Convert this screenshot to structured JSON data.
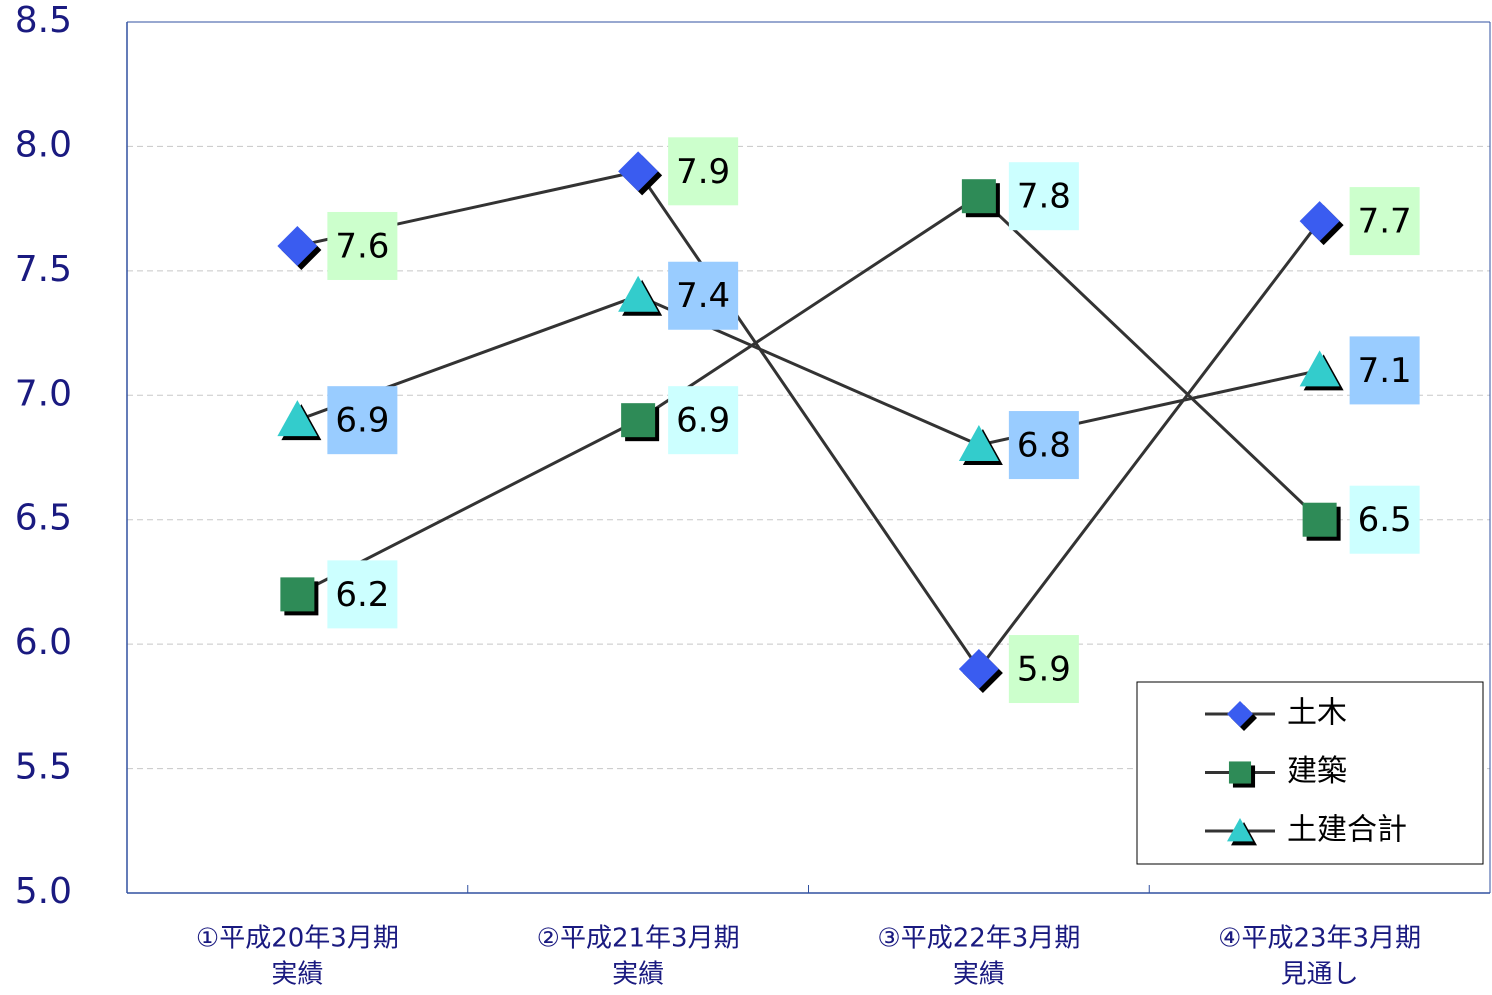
{
  "chart_data": {
    "type": "line",
    "categories": [
      [
        "①平成20年3月期",
        "実績"
      ],
      [
        "②平成21年3月期",
        "実績"
      ],
      [
        "③平成22年3月期",
        "実績"
      ],
      [
        "④平成23年3月期",
        "見通し"
      ]
    ],
    "series": [
      {
        "name": "土木",
        "color": "#3a5cf0",
        "marker": "diamond",
        "label_color": "#ccffcc",
        "values": [
          7.6,
          7.9,
          5.9,
          7.7
        ]
      },
      {
        "name": "建築",
        "color": "#2e8b57",
        "marker": "square",
        "label_color": "#ccffff",
        "values": [
          6.2,
          6.9,
          7.8,
          6.5
        ]
      },
      {
        "name": "土建合計",
        "color": "#33cccc",
        "marker": "triangle",
        "label_color": "#99ccff",
        "values": [
          6.9,
          7.4,
          6.8,
          7.1
        ]
      }
    ],
    "line_color": "#333333",
    "ylim": [
      5.0,
      8.5
    ],
    "yticks": [
      {
        "value": 5.0,
        "label": "5.0"
      },
      {
        "value": 5.5,
        "label": "5.5"
      },
      {
        "value": 6.0,
        "label": "6.0"
      },
      {
        "value": 6.5,
        "label": "6.5"
      },
      {
        "value": 7.0,
        "label": "7.0"
      },
      {
        "value": 7.5,
        "label": "7.5"
      },
      {
        "value": 8.0,
        "label": "8.0"
      },
      {
        "value": 8.5,
        "label": "8.5"
      }
    ],
    "grid": true,
    "legend": "lower right"
  }
}
